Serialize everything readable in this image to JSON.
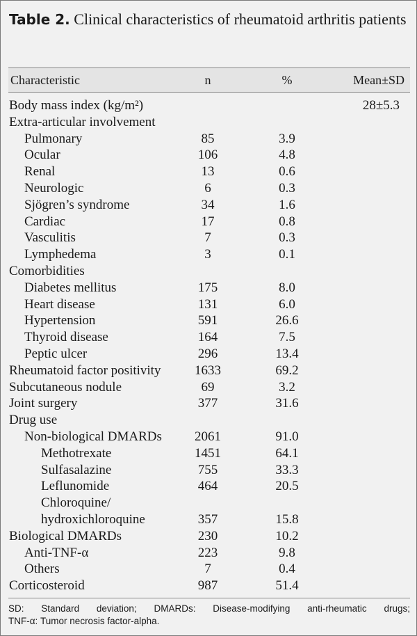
{
  "title": {
    "label": "Table 2.",
    "text": "Clinical characteristics of rheumatoid arthritis patients"
  },
  "columns": {
    "characteristic": "Characteristic",
    "n": "n",
    "percent": "%",
    "mean_sd": "Mean±SD"
  },
  "rows": [
    {
      "label": "Body mass index (kg/m²)",
      "indent": 0,
      "n": "",
      "percent": "",
      "mean_sd": "28±5.3"
    },
    {
      "label": "Extra-articular involvement",
      "indent": 0,
      "n": "",
      "percent": "",
      "mean_sd": ""
    },
    {
      "label": "Pulmonary",
      "indent": 1,
      "n": "85",
      "percent": "3.9",
      "mean_sd": ""
    },
    {
      "label": "Ocular",
      "indent": 1,
      "n": "106",
      "percent": "4.8",
      "mean_sd": ""
    },
    {
      "label": "Renal",
      "indent": 1,
      "n": "13",
      "percent": "0.6",
      "mean_sd": ""
    },
    {
      "label": "Neurologic",
      "indent": 1,
      "n": "6",
      "percent": "0.3",
      "mean_sd": ""
    },
    {
      "label": "Sjögren’s syndrome",
      "indent": 1,
      "n": "34",
      "percent": "1.6",
      "mean_sd": ""
    },
    {
      "label": "Cardiac",
      "indent": 1,
      "n": "17",
      "percent": "0.8",
      "mean_sd": ""
    },
    {
      "label": "Vasculitis",
      "indent": 1,
      "n": "7",
      "percent": "0.3",
      "mean_sd": ""
    },
    {
      "label": "Lymphedema",
      "indent": 1,
      "n": "3",
      "percent": "0.1",
      "mean_sd": ""
    },
    {
      "label": "Comorbidities",
      "indent": 0,
      "n": "",
      "percent": "",
      "mean_sd": ""
    },
    {
      "label": "Diabetes mellitus",
      "indent": 1,
      "n": "175",
      "percent": "8.0",
      "mean_sd": ""
    },
    {
      "label": "Heart disease",
      "indent": 1,
      "n": "131",
      "percent": "6.0",
      "mean_sd": ""
    },
    {
      "label": "Hypertension",
      "indent": 1,
      "n": "591",
      "percent": "26.6",
      "mean_sd": ""
    },
    {
      "label": "Thyroid disease",
      "indent": 1,
      "n": "164",
      "percent": "7.5",
      "mean_sd": ""
    },
    {
      "label": "Peptic ulcer",
      "indent": 1,
      "n": "296",
      "percent": "13.4",
      "mean_sd": ""
    },
    {
      "label": "Rheumatoid factor positivity",
      "indent": 0,
      "n": "1633",
      "percent": "69.2",
      "mean_sd": ""
    },
    {
      "label": "Subcutaneous nodule",
      "indent": 0,
      "n": "69",
      "percent": "3.2",
      "mean_sd": ""
    },
    {
      "label": "Joint surgery",
      "indent": 0,
      "n": "377",
      "percent": "31.6",
      "mean_sd": ""
    },
    {
      "label": "Drug use",
      "indent": 0,
      "n": "",
      "percent": "",
      "mean_sd": ""
    },
    {
      "label": "Non-biological DMARDs",
      "indent": 1,
      "n": "2061",
      "percent": "91.0",
      "mean_sd": ""
    },
    {
      "label": "Methotrexate",
      "indent": 2,
      "n": "1451",
      "percent": "64.1",
      "mean_sd": ""
    },
    {
      "label": "Sulfasalazine",
      "indent": 2,
      "n": "755",
      "percent": "33.3",
      "mean_sd": ""
    },
    {
      "label": "Leflunomide",
      "indent": 2,
      "n": "464",
      "percent": "20.5",
      "mean_sd": ""
    },
    {
      "label": "Chloroquine/",
      "indent": 2,
      "n": "",
      "percent": "",
      "mean_sd": ""
    },
    {
      "label": "hydroxichloroquine",
      "indent": 2,
      "n": "357",
      "percent": "15.8",
      "mean_sd": ""
    },
    {
      "label": "Biological DMARDs",
      "indent": 0,
      "n": "230",
      "percent": "10.2",
      "mean_sd": ""
    },
    {
      "label": "Anti-TNF-α",
      "indent": 1,
      "n": "223",
      "percent": "9.8",
      "mean_sd": ""
    },
    {
      "label": "Others",
      "indent": 1,
      "n": "7",
      "percent": "0.4",
      "mean_sd": ""
    },
    {
      "label": "Corticosteroid",
      "indent": 0,
      "n": "987",
      "percent": "51.4",
      "mean_sd": ""
    }
  ],
  "footnote": {
    "line1": "SD: Standard deviation; DMARDs: Disease-modifying anti-rheumatic drugs;",
    "line2": "TNF-α: Tumor necrosis factor-alpha."
  }
}
